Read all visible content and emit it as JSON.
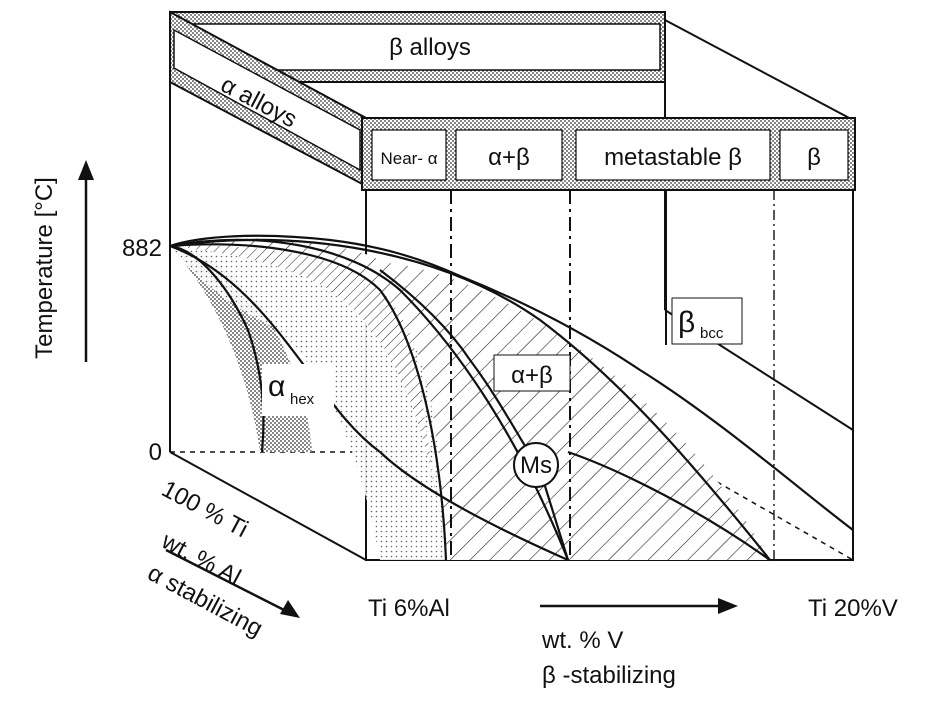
{
  "diagram": {
    "top_bar_beta": "β alloys",
    "top_bar_alpha": "α alloys",
    "categories": {
      "near_alpha": "Near- α",
      "alpha_beta": "α+β",
      "metastable_beta": "metastable β",
      "beta": "β"
    },
    "axes": {
      "temperature_label": "Temperature [°C]",
      "tick_882": "882",
      "tick_0": "0",
      "ti_100": "100 % Ti",
      "al_axis_line1": "wt. % Al",
      "al_axis_line2": "α stabilizing",
      "ti_6al": "Ti 6%Al",
      "ti_20v": "Ti 20%V",
      "v_axis_line1": "wt. % V",
      "v_axis_line2": "β -stabilizing"
    },
    "phases": {
      "alpha_hex_symbol": "α",
      "alpha_hex_sub": "hex",
      "alpha_beta": "α+β",
      "beta_bcc_symbol": "β",
      "beta_bcc_sub": "bcc",
      "ms": "Ms"
    }
  }
}
